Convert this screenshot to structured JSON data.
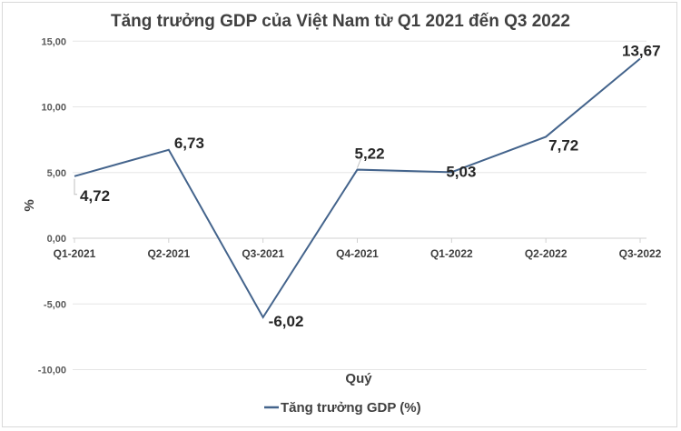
{
  "chart_data": {
    "type": "line",
    "title": "Tăng trưởng GDP của Việt Nam từ Q1 2021 đến Q3 2022",
    "xlabel": "Quý",
    "ylabel": "%",
    "categories": [
      "Q1-2021",
      "Q2-2021",
      "Q3-2021",
      "Q4-2021",
      "Q1-2022",
      "Q2-2022",
      "Q3-2022"
    ],
    "series": [
      {
        "name": "Tăng trưởng GDP (%)",
        "values": [
          4.72,
          6.73,
          -6.02,
          5.22,
          5.03,
          7.72,
          13.67
        ],
        "color": "#44648c"
      }
    ],
    "data_labels": [
      "4,72",
      "6,73",
      "-6,02",
      "5,22",
      "5,03",
      "7,72",
      "13,67"
    ],
    "ylim": [
      -10,
      15
    ],
    "yticks": [
      15,
      10,
      5,
      0,
      -5,
      -10
    ],
    "ytick_labels": [
      "15,00",
      "10,00",
      "5,00",
      "0,00",
      "-5,00",
      "-10,00"
    ],
    "grid": true,
    "legend": "bottom"
  }
}
